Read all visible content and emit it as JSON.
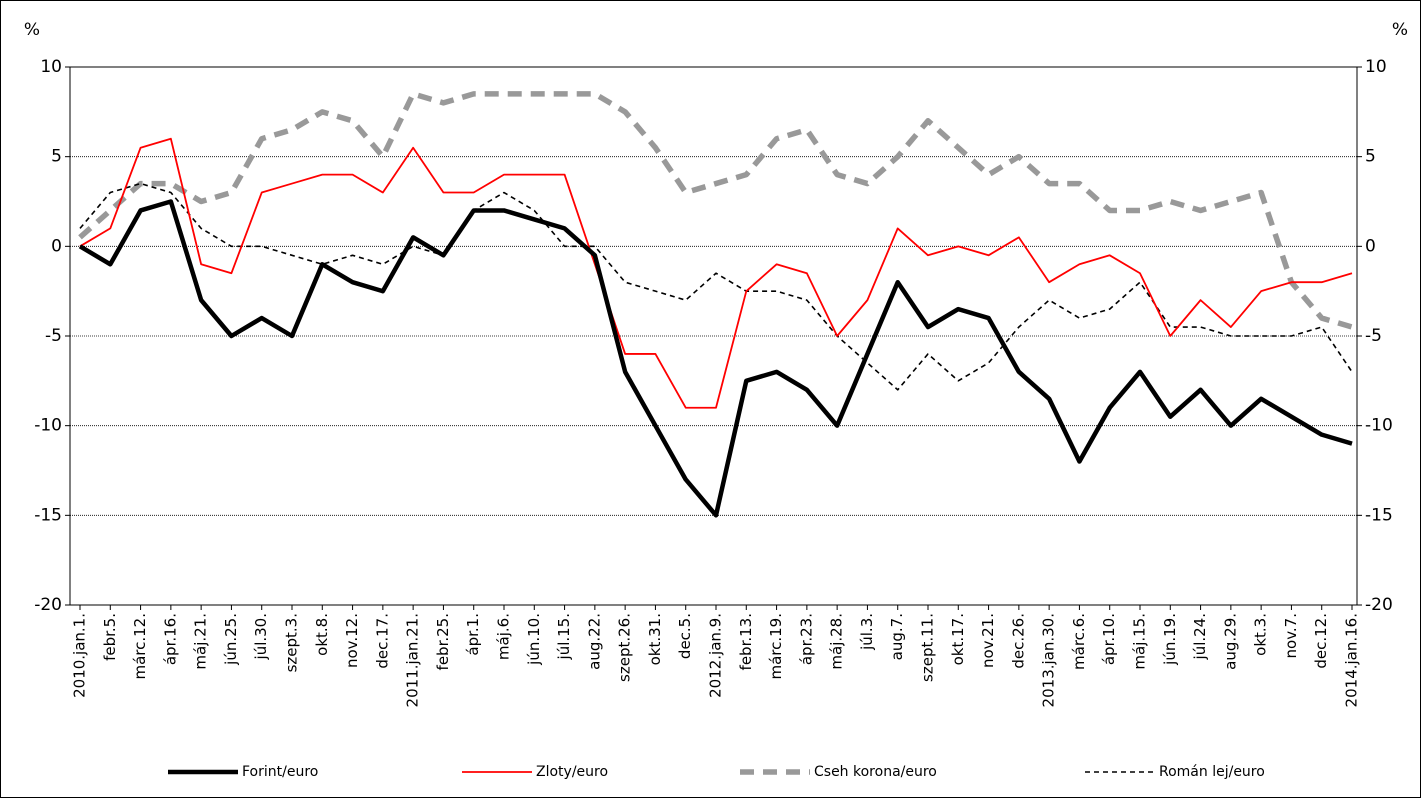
{
  "chart_data": {
    "type": "line",
    "ylabel": "%",
    "y2label": "%",
    "categories": [
      "2010.jan.1.",
      "febr.5.",
      "márc.12.",
      "ápr.16.",
      "máj.21.",
      "jún.25.",
      "júl.30.",
      "szept.3.",
      "okt.8.",
      "nov.12.",
      "dec.17.",
      "2011.jan.21.",
      "febr.25.",
      "ápr.1.",
      "máj.6.",
      "jún.10.",
      "júl.15.",
      "aug.22.",
      "szept.26.",
      "okt.31.",
      "dec.5.",
      "2012.jan.9.",
      "febr.13.",
      "márc.19.",
      "ápr.23.",
      "máj.28.",
      "júl.3.",
      "aug.7.",
      "szept.11.",
      "okt.17.",
      "nov.21.",
      "dec.26.",
      "2013.jan.30.",
      "márc.6.",
      "ápr.10.",
      "máj.15.",
      "jún.19.",
      "júl.24.",
      "aug.29.",
      "okt.3.",
      "nov.7.",
      "dec.12.",
      "2014.jan.16."
    ],
    "series": [
      {
        "name": "Forint/euro",
        "color": "#000000",
        "style": "solid",
        "values": [
          0,
          -1,
          2,
          2.5,
          -3,
          -5,
          -4,
          -5,
          -1,
          -2,
          -2.5,
          0.5,
          -0.5,
          2,
          2,
          1.5,
          1,
          -0.5,
          -7,
          -10,
          -13,
          -15,
          -7.5,
          -7,
          -8,
          -10,
          -6,
          -2,
          -4.5,
          -3.5,
          -4,
          -7,
          -8.5,
          -12,
          -9,
          -7,
          -9.5,
          -8,
          -10,
          -8.5,
          -9.5,
          -10.5,
          -11
        ]
      },
      {
        "name": "Zloty/euro",
        "color": "#ff0000",
        "style": "solid",
        "values": [
          0,
          1,
          5.5,
          6,
          -1,
          -1.5,
          3,
          3.5,
          4,
          4,
          3,
          5.5,
          3,
          3,
          4,
          4,
          4,
          -1,
          -6,
          -6,
          -9,
          -9,
          -2.5,
          -1,
          -1.5,
          -5,
          -3,
          1,
          -0.5,
          0,
          -0.5,
          0.5,
          -2,
          -1,
          -0.5,
          -1.5,
          -5,
          -3,
          -4.5,
          -2.5,
          -2,
          -2,
          -1.5
        ]
      },
      {
        "name": "Cseh korona/euro",
        "color": "#999999",
        "style": "dashed",
        "values": [
          0.5,
          2,
          3.5,
          3.5,
          2.5,
          3,
          6,
          6.5,
          7.5,
          7,
          5,
          8.5,
          8,
          8.5,
          8.5,
          8.5,
          8.5,
          8.5,
          7.5,
          5.5,
          3,
          3.5,
          4,
          6,
          6.5,
          4,
          3.5,
          5,
          7,
          5.5,
          4,
          5,
          3.5,
          3.5,
          2,
          2,
          2.5,
          2,
          2.5,
          3,
          -2,
          -4,
          -4.5
        ]
      },
      {
        "name": "Román lej/euro",
        "color": "#000000",
        "style": "dashed",
        "values": [
          1,
          3,
          3.5,
          3,
          1,
          0,
          0,
          -0.5,
          -1,
          -0.5,
          -1,
          0,
          -0.5,
          2,
          3,
          2,
          0,
          0,
          -2,
          -2.5,
          -3,
          -1.5,
          -2.5,
          -2.5,
          -3,
          -5,
          -6.5,
          -8,
          -6,
          -7.5,
          -6.5,
          -4.5,
          -3,
          -4,
          -3.5,
          -2,
          -4.5,
          -4.5,
          -5,
          -5,
          -5,
          -4.5,
          -7
        ]
      }
    ],
    "ylim": [
      -20,
      10
    ],
    "yticks": [
      -20,
      -15,
      -10,
      -5,
      0,
      5,
      10
    ],
    "y2lim": [
      -20,
      10
    ],
    "y2ticks": [
      -20,
      -15,
      -10,
      -5,
      0,
      5,
      10
    ],
    "grid": true,
    "legend": "bottom"
  }
}
